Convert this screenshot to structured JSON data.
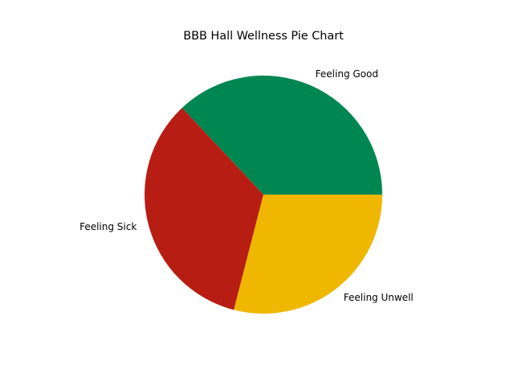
{
  "chart_data": {
    "type": "pie",
    "title": "BBB Hall Wellness Pie Chart",
    "labels": [
      "Feeling Good",
      "Feeling Sick",
      "Feeling Unwell"
    ],
    "values": [
      37,
      34,
      29
    ],
    "colors": [
      "#008751",
      "#B81D13",
      "#EFB700"
    ],
    "start_angle_deg": 0,
    "direction": "counterclockwise",
    "legend": "none"
  }
}
